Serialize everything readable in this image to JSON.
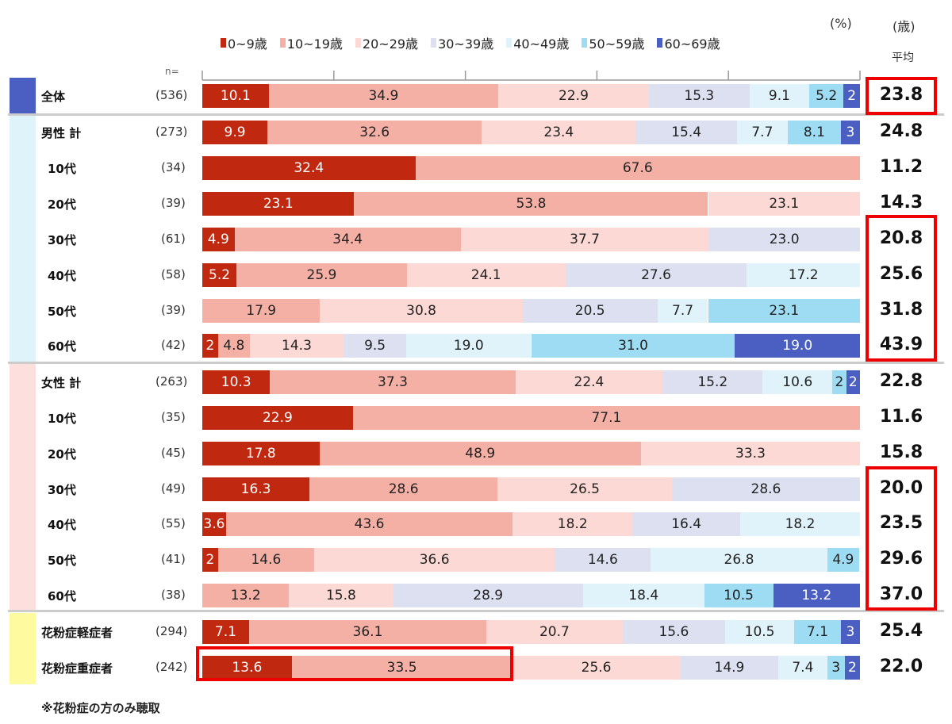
{
  "chart_data": {
    "type": "bar",
    "orientation": "horizontal-stacked-100",
    "unit_left": "(%)",
    "unit_right": "(歳)",
    "avg_header": "平均",
    "n_header": "n=",
    "legend": [
      "0~9歳",
      "10~19歳",
      "20~29歳",
      "30~39歳",
      "40~49歳",
      "50~59歳",
      "60~69歳"
    ],
    "colors": [
      "#c0280f",
      "#f5b0a6",
      "#fcd9d4",
      "#dde0f0",
      "#e0f3fa",
      "#9ddcf2",
      "#4a5fc1"
    ],
    "xlim": [
      0,
      100
    ],
    "rows": [
      {
        "label": "全体",
        "n": "(536)",
        "values": [
          10.1,
          34.9,
          22.9,
          15.3,
          9.1,
          5.2,
          2.5
        ],
        "labels": [
          "10.1",
          "34.9",
          "22.9",
          "15.3",
          "9.1",
          "5.2",
          "2"
        ],
        "avg": "23.8"
      },
      {
        "label": "男性 計",
        "n": "(273)",
        "values": [
          9.9,
          32.6,
          23.4,
          15.4,
          7.7,
          8.1,
          2.9
        ],
        "labels": [
          "9.9",
          "32.6",
          "23.4",
          "15.4",
          "7.7",
          "8.1",
          "3"
        ],
        "avg": "24.8"
      },
      {
        "label": "10代",
        "n": "(34)",
        "values": [
          32.4,
          67.6,
          0,
          0,
          0,
          0,
          0
        ],
        "labels": [
          "32.4",
          "67.6",
          "",
          "",
          "",
          "",
          ""
        ],
        "avg": "11.2"
      },
      {
        "label": "20代",
        "n": "(39)",
        "values": [
          23.1,
          53.8,
          23.1,
          0,
          0,
          0,
          0
        ],
        "labels": [
          "23.1",
          "53.8",
          "23.1",
          "",
          "",
          "",
          ""
        ],
        "avg": "14.3"
      },
      {
        "label": "30代",
        "n": "(61)",
        "values": [
          4.9,
          34.4,
          37.7,
          23.0,
          0,
          0,
          0
        ],
        "labels": [
          "4.9",
          "34.4",
          "37.7",
          "23.0",
          "",
          "",
          ""
        ],
        "avg": "20.8"
      },
      {
        "label": "40代",
        "n": "(58)",
        "values": [
          5.2,
          25.9,
          24.1,
          27.6,
          17.2,
          0,
          0
        ],
        "labels": [
          "5.2",
          "25.9",
          "24.1",
          "27.6",
          "17.2",
          "",
          ""
        ],
        "avg": "25.6"
      },
      {
        "label": "50代",
        "n": "(39)",
        "values": [
          0,
          17.9,
          30.8,
          20.5,
          7.7,
          23.1,
          0
        ],
        "labels": [
          "",
          "17.9",
          "30.8",
          "20.5",
          "7.7",
          "23.1",
          ""
        ],
        "avg": "31.8"
      },
      {
        "label": "60代",
        "n": "(42)",
        "values": [
          2.4,
          4.8,
          14.3,
          9.5,
          19.0,
          31.0,
          19.0
        ],
        "labels": [
          "2",
          "4.8",
          "14.3",
          "9.5",
          "19.0",
          "31.0",
          "19.0"
        ],
        "avg": "43.9"
      },
      {
        "label": "女性 計",
        "n": "(263)",
        "values": [
          10.3,
          37.3,
          22.4,
          15.2,
          10.6,
          2.1,
          2.1
        ],
        "labels": [
          "10.3",
          "37.3",
          "22.4",
          "15.2",
          "10.6",
          "2",
          "2"
        ],
        "avg": "22.8"
      },
      {
        "label": "10代",
        "n": "(35)",
        "values": [
          22.9,
          77.1,
          0,
          0,
          0,
          0,
          0
        ],
        "labels": [
          "22.9",
          "77.1",
          "",
          "",
          "",
          "",
          ""
        ],
        "avg": "11.6"
      },
      {
        "label": "20代",
        "n": "(45)",
        "values": [
          17.8,
          48.9,
          33.3,
          0,
          0,
          0,
          0
        ],
        "labels": [
          "17.8",
          "48.9",
          "33.3",
          "",
          "",
          "",
          ""
        ],
        "avg": "15.8"
      },
      {
        "label": "30代",
        "n": "(49)",
        "values": [
          16.3,
          28.6,
          26.5,
          28.6,
          0,
          0,
          0
        ],
        "labels": [
          "16.3",
          "28.6",
          "26.5",
          "28.6",
          "",
          "",
          ""
        ],
        "avg": "20.0"
      },
      {
        "label": "40代",
        "n": "(55)",
        "values": [
          3.6,
          43.6,
          18.2,
          16.4,
          18.2,
          0,
          0
        ],
        "labels": [
          "3.6",
          "43.6",
          "18.2",
          "16.4",
          "18.2",
          "",
          ""
        ],
        "avg": "23.5"
      },
      {
        "label": "50代",
        "n": "(41)",
        "values": [
          2.4,
          14.6,
          36.6,
          14.6,
          26.8,
          4.9,
          0
        ],
        "labels": [
          "2",
          "14.6",
          "36.6",
          "14.6",
          "26.8",
          "4.9",
          ""
        ],
        "avg": "29.6"
      },
      {
        "label": "60代",
        "n": "(38)",
        "values": [
          0,
          13.2,
          15.8,
          28.9,
          18.4,
          10.5,
          13.2
        ],
        "labels": [
          "",
          "13.2",
          "15.8",
          "28.9",
          "18.4",
          "10.5",
          "13.2"
        ],
        "avg": "37.0"
      },
      {
        "label": "花粉症軽症者",
        "n": "(294)",
        "values": [
          7.1,
          36.1,
          20.7,
          15.6,
          10.5,
          7.1,
          2.9
        ],
        "labels": [
          "7.1",
          "36.1",
          "20.7",
          "15.6",
          "10.5",
          "7.1",
          "3"
        ],
        "avg": "25.4"
      },
      {
        "label": "花粉症重症者",
        "n": "(242)",
        "values": [
          13.6,
          33.5,
          25.6,
          14.9,
          7.4,
          2.7,
          2.3
        ],
        "labels": [
          "13.6",
          "33.5",
          "25.6",
          "14.9",
          "7.4",
          "3",
          "2"
        ],
        "avg": "22.0"
      }
    ]
  },
  "footnote": "※花粉症の方のみ聴取"
}
